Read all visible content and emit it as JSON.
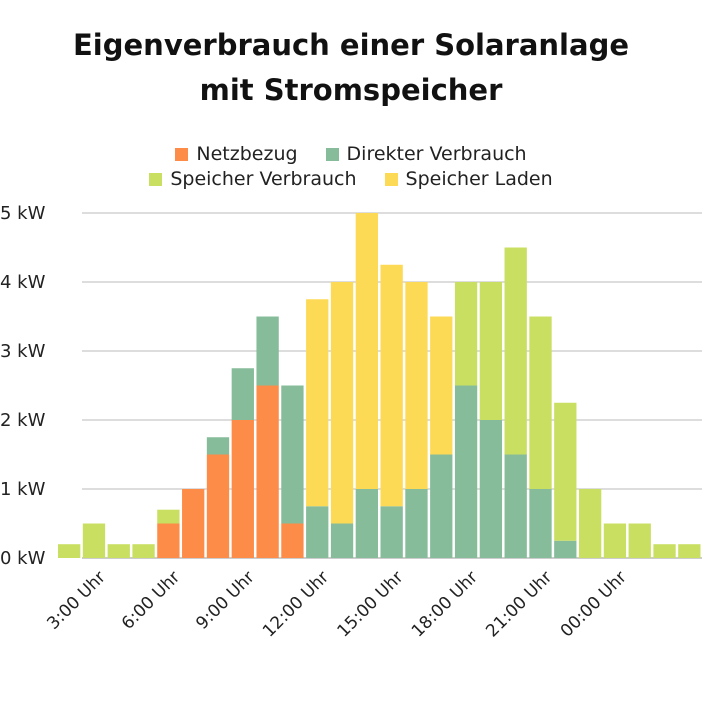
{
  "chart_data": {
    "type": "bar",
    "stacked": true,
    "title": [
      "Eigenverbrauch einer Solaranlage",
      "mit Stromspeicher"
    ],
    "xlabel": "",
    "ylabel": "",
    "ylim": [
      0,
      5
    ],
    "y_ticks": [
      0,
      1,
      2,
      3,
      4,
      5
    ],
    "y_tick_labels": [
      "0 kW",
      "1 kW",
      "2 kW",
      "3 kW",
      "4 kW",
      "5 kW"
    ],
    "x_tick_labels": [
      {
        "bar": 2,
        "label": "3:00 Uhr"
      },
      {
        "bar": 5,
        "label": "6:00 Uhr"
      },
      {
        "bar": 8,
        "label": "9:00 Uhr"
      },
      {
        "bar": 11,
        "label": "12:00 Uhr"
      },
      {
        "bar": 14,
        "label": "15:00 Uhr"
      },
      {
        "bar": 17,
        "label": "18:00 Uhr"
      },
      {
        "bar": 20,
        "label": "21:00 Uhr"
      },
      {
        "bar": 23,
        "label": "00:00 Uhr"
      }
    ],
    "grid": true,
    "legend_position": "top",
    "series": [
      {
        "name": "Netzbezug",
        "color": "#FD8C48",
        "values": [
          0,
          0,
          0,
          0,
          0.5,
          1,
          1.5,
          2,
          2.5,
          0.5,
          0,
          0,
          0,
          0,
          0,
          0,
          0,
          0,
          0,
          0,
          0,
          0,
          0,
          0,
          0,
          0
        ]
      },
      {
        "name": "Direkter Verbrauch",
        "color": "#86BC9A",
        "values": [
          0,
          0,
          0,
          0,
          0,
          0,
          0.25,
          0.75,
          1,
          2,
          0.75,
          0.5,
          1,
          0.75,
          1,
          1.5,
          2.5,
          2,
          1.5,
          1,
          0.25,
          0,
          0,
          0,
          0,
          0
        ]
      },
      {
        "name": "Speicher Verbrauch",
        "color": "#C9DF62",
        "values": [
          0.2,
          0.5,
          0.2,
          0.2,
          0.2,
          0,
          0,
          0,
          0,
          0,
          0,
          0,
          0,
          0,
          0,
          0,
          1.5,
          2,
          3,
          2.5,
          2,
          1,
          0.5,
          0.5,
          0.2,
          0.2
        ]
      },
      {
        "name": "Speicher Laden",
        "color": "#FDDA55",
        "values": [
          0,
          0,
          0,
          0,
          0,
          0,
          0,
          0,
          0,
          0,
          3,
          3.5,
          4,
          3.5,
          3,
          2,
          0,
          0,
          0,
          0,
          0,
          0,
          0,
          0,
          0,
          0
        ]
      }
    ]
  }
}
